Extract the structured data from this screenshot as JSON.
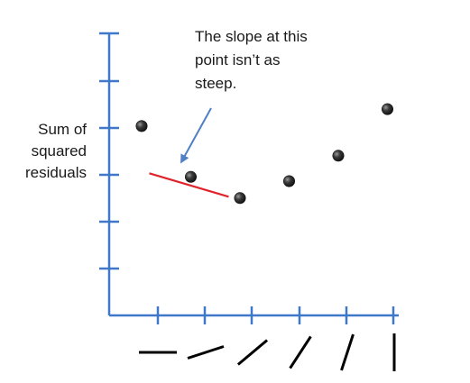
{
  "y_axis_label": [
    "Sum of",
    "squared",
    "residuals"
  ],
  "annotation": [
    "The slope at this",
    "point isn’t as",
    "steep."
  ],
  "colors": {
    "axis": "#3f78c9",
    "point": "#3a3a3a",
    "tangent": "#e0242c",
    "arrow": "#4f7fc4",
    "slope_marks": "#000000"
  },
  "points": [
    {
      "step": 0,
      "value": 8.3
    },
    {
      "step": 1,
      "value": 7.1
    },
    {
      "step": 2,
      "value": 6.6
    },
    {
      "step": 3,
      "value": 7.0
    },
    {
      "step": 4,
      "value": 7.6
    },
    {
      "step": 5,
      "value": 8.7
    }
  ],
  "slope_angles_deg": [
    0,
    18,
    40,
    57,
    72,
    90
  ],
  "tangent_at_step": 1
}
